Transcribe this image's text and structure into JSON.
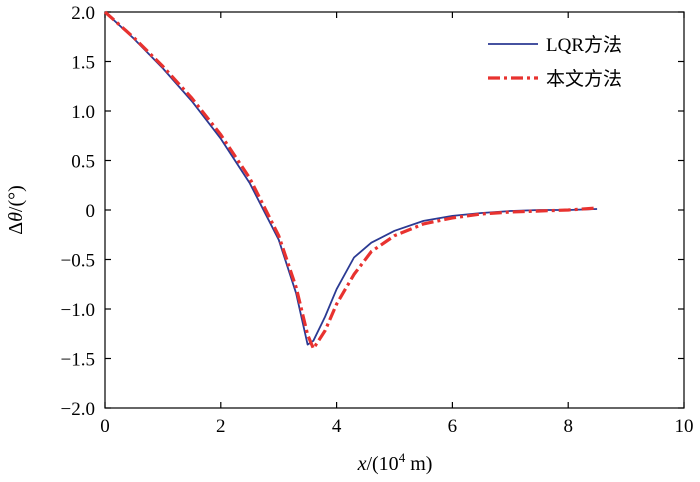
{
  "chart_data": {
    "type": "line",
    "xlabel_var": "x",
    "xlabel_rest_a": "/(10",
    "xlabel_sup": "4",
    "xlabel_rest_b": " m)",
    "ylabel_prefix": "Δ",
    "ylabel_var": "θ",
    "ylabel_rest": "/(°)",
    "xlim": [
      0,
      10
    ],
    "ylim": [
      -2.0,
      2.0
    ],
    "xticks": [
      0,
      2,
      4,
      6,
      8,
      10
    ],
    "xtick_labels": [
      "0",
      "2",
      "4",
      "6",
      "8",
      "10"
    ],
    "yticks": [
      2.0,
      1.5,
      1.0,
      0.5,
      0,
      -0.5,
      -1.0,
      -1.5,
      -2.0
    ],
    "ytick_labels": [
      "2.0",
      "1.5",
      "1.0",
      "0.5",
      "0",
      "−0.5",
      "−1.0",
      "−1.5",
      "−2.0"
    ],
    "grid": false,
    "legend_position": "top-right",
    "series": [
      {
        "name": "LQR方法",
        "color": "#2b3a93",
        "style": "solid",
        "x": [
          0,
          0.5,
          1.0,
          1.5,
          2.0,
          2.5,
          3.0,
          3.3,
          3.5,
          3.6,
          3.8,
          4.0,
          4.3,
          4.6,
          5.0,
          5.5,
          6.0,
          6.5,
          7.0,
          7.5,
          8.0,
          8.5
        ],
        "y": [
          2.0,
          1.73,
          1.43,
          1.1,
          0.72,
          0.27,
          -0.3,
          -0.84,
          -1.36,
          -1.32,
          -1.08,
          -0.8,
          -0.48,
          -0.33,
          -0.21,
          -0.11,
          -0.06,
          -0.03,
          -0.01,
          0.0,
          0.0,
          0.01
        ]
      },
      {
        "name": "本文方法",
        "color": "#e8322f",
        "style": "dash-dot",
        "x": [
          0,
          0.5,
          1.0,
          1.5,
          2.0,
          2.5,
          3.0,
          3.3,
          3.5,
          3.6,
          3.8,
          4.0,
          4.3,
          4.6,
          5.0,
          5.5,
          6.0,
          6.5,
          7.0,
          7.5,
          8.0,
          8.5
        ],
        "y": [
          2.0,
          1.74,
          1.45,
          1.13,
          0.76,
          0.32,
          -0.26,
          -0.78,
          -1.26,
          -1.4,
          -1.22,
          -0.95,
          -0.65,
          -0.42,
          -0.26,
          -0.14,
          -0.08,
          -0.04,
          -0.02,
          -0.01,
          0.0,
          0.02
        ]
      }
    ]
  }
}
